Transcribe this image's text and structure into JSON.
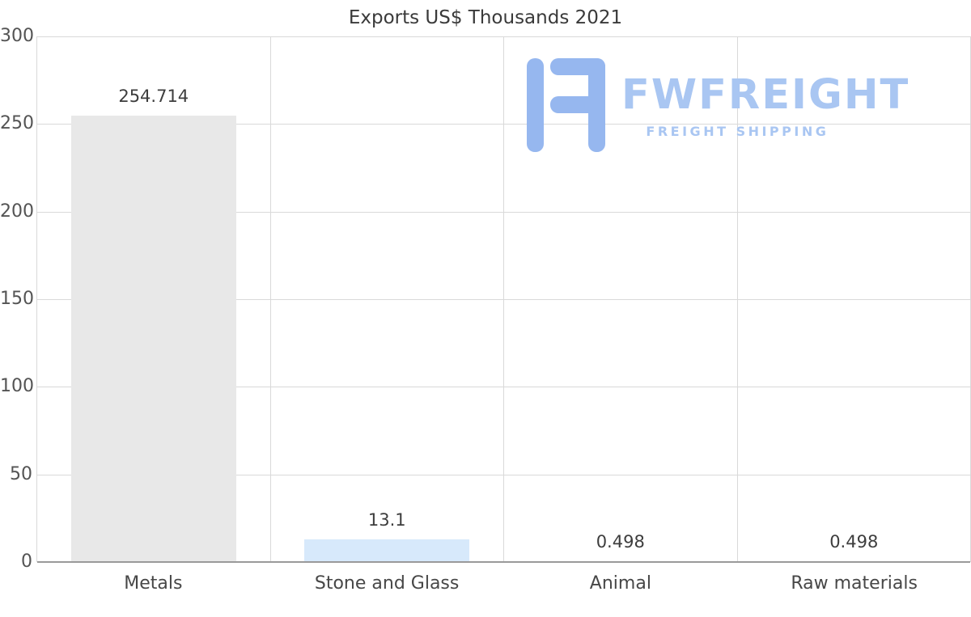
{
  "page": {
    "background": "#ffffff"
  },
  "header": {
    "title": "Exports US$ Thousands 2021"
  },
  "logo": {
    "brand": "FWFREIGHT",
    "tagline": "FREIGHT SHIPPING",
    "icon": "fwfreight-block-letter-icon",
    "icon_color": "#96b7ef",
    "text_color": "#a9c6f2"
  },
  "chart_data": {
    "type": "bar",
    "title": "Exports US$ Thousands 2021",
    "categories": [
      "Metals",
      "Stone and Glass",
      "Animal",
      "Raw materials"
    ],
    "values": [
      254.714,
      13.1,
      0.498,
      0.498
    ],
    "value_labels": [
      "254.714",
      "13.1",
      "0.498",
      "0.498"
    ],
    "bar_colors": [
      "#e8e8e8",
      "#d7e9fb",
      "#e8e8e8",
      "#cfe6fa"
    ],
    "ylim": [
      0,
      300
    ],
    "yticks": [
      0,
      50,
      100,
      150,
      200,
      250,
      300
    ],
    "grid": true,
    "gridline_color": "#d9d9d9",
    "axis_line_color": "#9a9a9a",
    "legend": "none",
    "xlabel": "",
    "ylabel": ""
  }
}
